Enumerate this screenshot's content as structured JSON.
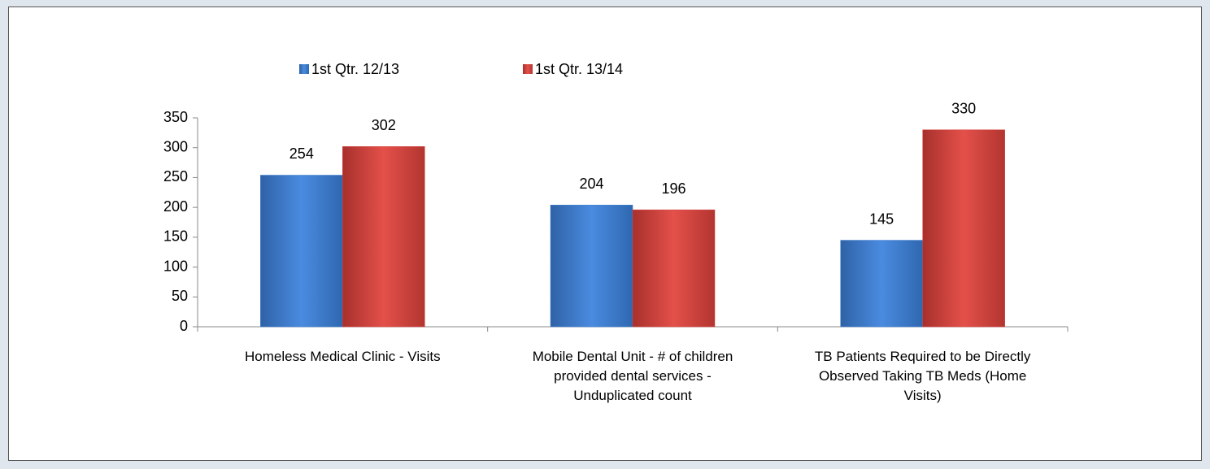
{
  "chart_data": {
    "type": "bar",
    "categories": [
      "Homeless Medical Clinic - Visits",
      "Mobile Dental Unit - # of children provided dental services - Unduplicated count",
      "TB Patients Required to be Directly Observed Taking TB Meds (Home Visits)"
    ],
    "series": [
      {
        "name": "1st Qtr. 12/13",
        "color": "#3f7fd0",
        "values": [
          254,
          204,
          145
        ]
      },
      {
        "name": "1st Qtr. 13/14",
        "color": "#d9413c",
        "values": [
          302,
          196,
          330
        ]
      }
    ],
    "ylim": [
      0,
      350
    ],
    "yticks": [
      0,
      50,
      100,
      150,
      200,
      250,
      300,
      350
    ],
    "legend": "top"
  }
}
